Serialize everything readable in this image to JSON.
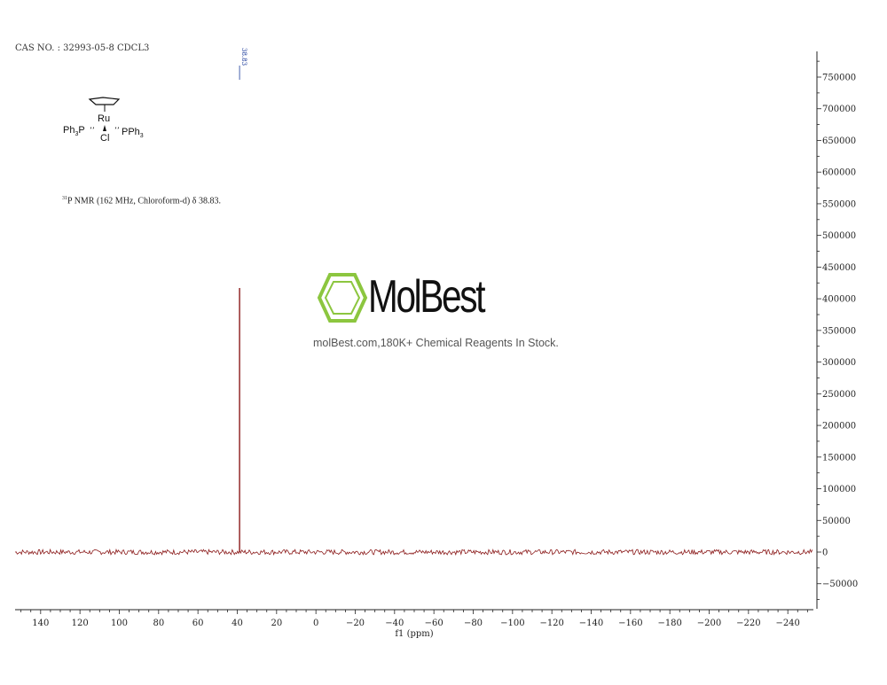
{
  "header": {
    "cas_line": "CAS NO. : 32993-05-8 CDCL3",
    "nmr_description": "P NMR (162 MHz, Chloroform-d) δ 38.83.",
    "nmr_superscript": "31"
  },
  "structure": {
    "metal": "Ru",
    "left_ligand": "Ph",
    "left_ligand_sub": "3",
    "left_ligand_atom": "P",
    "right_ligand": "PPh",
    "right_ligand_sub": "3",
    "halide": "Cl"
  },
  "watermark": {
    "brand": "MolBest",
    "tagline": "molBest.com,180K+ Chemical Reagents In Stock.",
    "accent_color": "#8cc63f"
  },
  "chart_data": {
    "type": "line",
    "xlabel": "f1 (ppm)",
    "ylabel": "",
    "xlim": [
      153,
      -253
    ],
    "ylim": [
      -90000,
      790000
    ],
    "x_ticks": [
      140,
      120,
      100,
      80,
      60,
      40,
      20,
      0,
      -20,
      -40,
      -60,
      -80,
      -100,
      -120,
      -140,
      -160,
      -180,
      -200,
      -220,
      -240
    ],
    "x_tick_labels": [
      "140",
      "120",
      "100",
      "80",
      "60",
      "40",
      "20",
      "0",
      "−20",
      "−40",
      "−60",
      "−80",
      "−100",
      "−120",
      "−140",
      "−160",
      "−180",
      "−200",
      "−220",
      "−240"
    ],
    "y_ticks": [
      750000,
      700000,
      650000,
      600000,
      550000,
      500000,
      450000,
      400000,
      350000,
      300000,
      250000,
      200000,
      150000,
      100000,
      50000,
      0,
      -50000
    ],
    "y_tick_labels": [
      "750000",
      "700000",
      "650000",
      "600000",
      "550000",
      "500000",
      "450000",
      "400000",
      "350000",
      "300000",
      "250000",
      "200000",
      "150000",
      "100000",
      "50000",
      "0",
      "−50000"
    ],
    "peaks": [
      {
        "ppm": 38.83,
        "intensity": 417000,
        "label": "38.83"
      }
    ],
    "noise_amplitude": 4000,
    "series_color": "#8b1a1a",
    "grid": false,
    "y_axis_position": "right"
  }
}
